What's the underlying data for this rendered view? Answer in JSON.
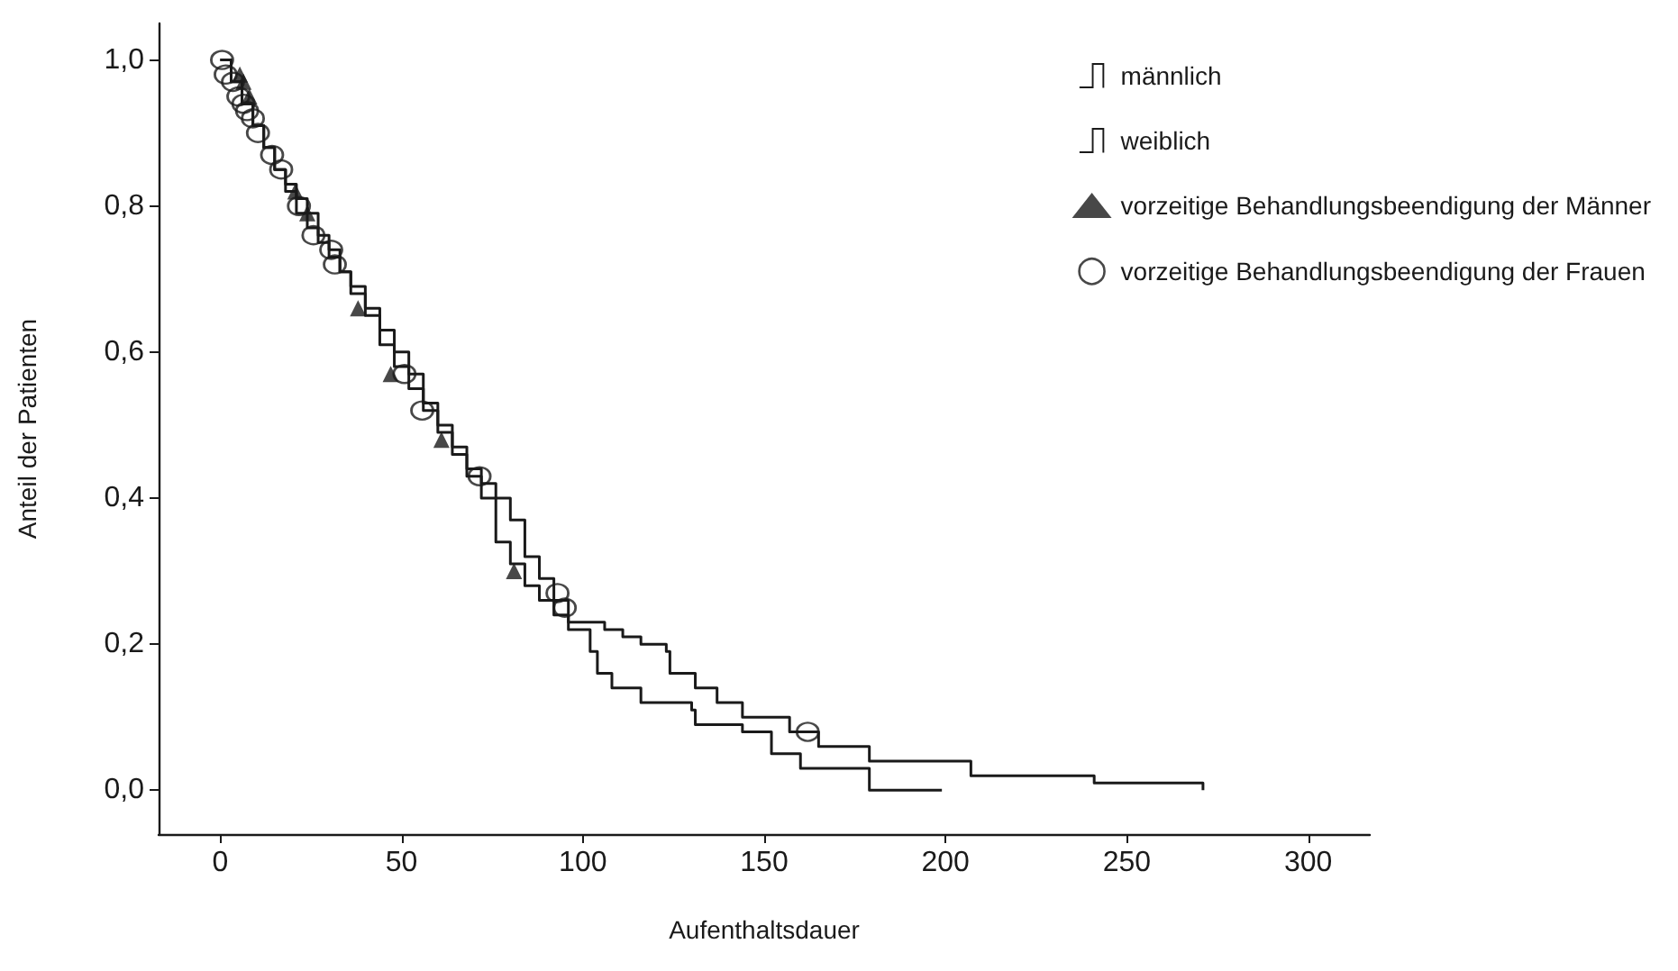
{
  "chart_data": {
    "type": "step",
    "xlabel": "Aufenthaltsdauer",
    "ylabel": "Anteil der Patienten",
    "xlim": [
      -17,
      317
    ],
    "xticks": [
      0,
      50,
      100,
      150,
      200,
      250,
      300
    ],
    "ylim": [
      -0.06,
      1.05
    ],
    "yticks": [
      {
        "value": 0,
        "label": "0,0"
      },
      {
        "value": 0.2,
        "label": "0,2"
      },
      {
        "value": 0.4,
        "label": "0,4"
      },
      {
        "value": 0.6,
        "label": "0,6"
      },
      {
        "value": 0.8,
        "label": "0,8"
      },
      {
        "value": 1,
        "label": "1,0"
      }
    ],
    "grid": false,
    "legend": "top right",
    "line_style": "solid",
    "marker": "none",
    "series": [
      {
        "name": "männlich",
        "color": "#1a1a1a",
        "x": [
          0,
          3,
          6,
          9,
          12,
          15,
          18,
          21,
          24,
          27,
          30,
          33,
          36,
          40,
          44,
          48,
          52,
          56,
          60,
          64,
          68,
          72,
          76,
          80,
          84,
          88,
          92,
          96,
          102,
          104,
          108,
          116,
          130,
          131,
          144,
          152,
          160,
          179,
          199
        ],
        "values": [
          1.0,
          0.97,
          0.94,
          0.91,
          0.88,
          0.85,
          0.83,
          0.81,
          0.79,
          0.76,
          0.74,
          0.71,
          0.68,
          0.65,
          0.61,
          0.58,
          0.55,
          0.52,
          0.49,
          0.46,
          0.43,
          0.4,
          0.34,
          0.31,
          0.28,
          0.26,
          0.24,
          0.22,
          0.19,
          0.16,
          0.14,
          0.12,
          0.11,
          0.09,
          0.08,
          0.05,
          0.03,
          0.0,
          0.0
        ]
      },
      {
        "name": "weiblich",
        "color": "#1a1a1a",
        "x": [
          0,
          3,
          6,
          9,
          12,
          15,
          18,
          21,
          24,
          27,
          30,
          33,
          36,
          40,
          44,
          48,
          52,
          56,
          60,
          64,
          68,
          72,
          76,
          80,
          84,
          88,
          92,
          96,
          106,
          111,
          116,
          123,
          124,
          131,
          137,
          144,
          157,
          165,
          179,
          207,
          226,
          241,
          270,
          271
        ],
        "values": [
          1.0,
          0.97,
          0.94,
          0.91,
          0.88,
          0.85,
          0.82,
          0.79,
          0.77,
          0.75,
          0.73,
          0.71,
          0.69,
          0.66,
          0.63,
          0.6,
          0.57,
          0.53,
          0.5,
          0.47,
          0.44,
          0.42,
          0.4,
          0.37,
          0.32,
          0.29,
          0.26,
          0.23,
          0.22,
          0.21,
          0.2,
          0.19,
          0.16,
          0.14,
          0.12,
          0.1,
          0.08,
          0.06,
          0.04,
          0.02,
          0.02,
          0.01,
          0.01,
          0.0
        ]
      },
      {
        "name": "vorzeitige Behandlungsbeendigung der Männer",
        "type": "scatter",
        "marker": "triangle",
        "color": "#1a1a1a",
        "x": [
          5.4,
          6.4,
          8,
          20.7,
          24,
          38,
          47,
          61,
          81
        ],
        "values": [
          0.98,
          0.97,
          0.95,
          0.82,
          0.79,
          0.66,
          0.57,
          0.48,
          0.3
        ]
      },
      {
        "name": "vorzeitige Behandlungsbeendigung der Frauen",
        "type": "scatter",
        "marker": "circle",
        "color": "#1a1a1a",
        "x": [
          0.5,
          1.5,
          3.5,
          5,
          6.4,
          7.4,
          9,
          10.4,
          14.3,
          16.8,
          21.7,
          25.7,
          30.6,
          31.6,
          50.8,
          55.7,
          71.5,
          93,
          95,
          162
        ],
        "values": [
          1.0,
          0.98,
          0.97,
          0.95,
          0.94,
          0.93,
          0.92,
          0.9,
          0.87,
          0.85,
          0.8,
          0.76,
          0.74,
          0.72,
          0.57,
          0.52,
          0.43,
          0.27,
          0.25,
          0.08
        ]
      }
    ]
  }
}
